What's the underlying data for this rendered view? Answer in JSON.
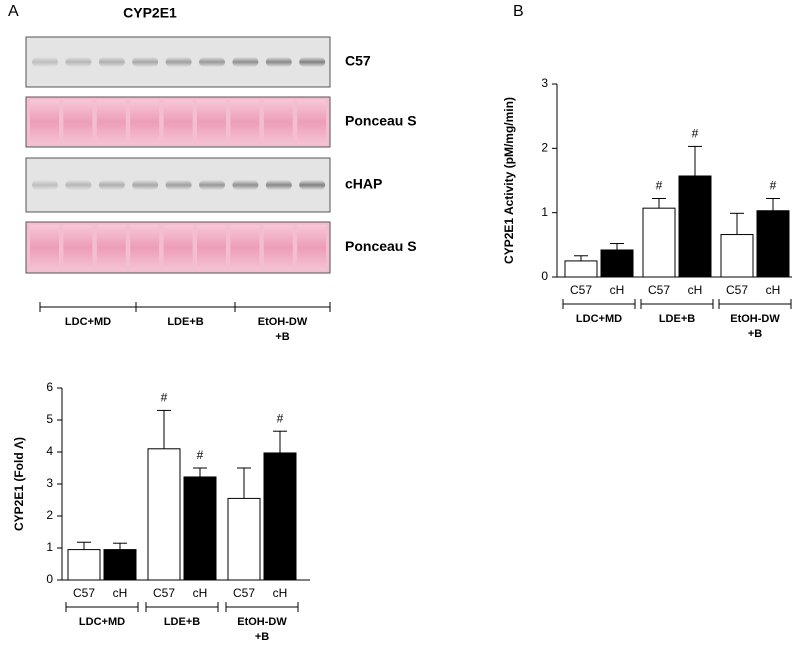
{
  "panel_labels": [
    "A",
    "B"
  ],
  "blot": {
    "title": "CYP2E1",
    "rows": [
      "C57",
      "Ponceau S",
      "cHAP",
      "Ponceau S"
    ],
    "groups": [
      [
        "LDC+MD"
      ],
      [
        "LDE+B"
      ],
      [
        "EtOH-DW",
        "+B"
      ]
    ]
  },
  "chart_data": [
    {
      "type": "bar",
      "ylabel": "CYP2E1 (Fold Λ)",
      "groups": [
        [
          "LDC+MD"
        ],
        [
          "LDE+B"
        ],
        [
          "EtOH-DW",
          "+B"
        ]
      ],
      "series": [
        {
          "name": "C57",
          "color": "#ffffff",
          "values": [
            0.95,
            4.1,
            2.55
          ],
          "errors": [
            0.23,
            1.2,
            0.95
          ],
          "annotations": [
            null,
            "#",
            null
          ]
        },
        {
          "name": "cH",
          "color": "#000000",
          "values": [
            0.95,
            3.22,
            3.97
          ],
          "errors": [
            0.2,
            0.28,
            0.68
          ],
          "annotations": [
            null,
            "#",
            "#"
          ]
        }
      ],
      "ylim": [
        0,
        6
      ],
      "yticks": [
        0,
        1,
        2,
        3,
        4,
        5,
        6
      ]
    },
    {
      "type": "bar",
      "ylabel": "CYP2E1 Activity (pM/mg/min)",
      "groups": [
        [
          "LDC+MD"
        ],
        [
          "LDE+B"
        ],
        [
          "EtOH-DW",
          "+B"
        ]
      ],
      "series": [
        {
          "name": "C57",
          "color": "#ffffff",
          "values": [
            0.25,
            1.07,
            0.66
          ],
          "errors": [
            0.08,
            0.15,
            0.33
          ],
          "annotations": [
            null,
            "#",
            null
          ]
        },
        {
          "name": "cH",
          "color": "#000000",
          "values": [
            0.42,
            1.57,
            1.03
          ],
          "errors": [
            0.1,
            0.46,
            0.19
          ],
          "annotations": [
            null,
            "#",
            "#"
          ]
        }
      ],
      "ylim": [
        0,
        3
      ],
      "yticks": [
        0,
        1,
        2,
        3
      ]
    }
  ]
}
